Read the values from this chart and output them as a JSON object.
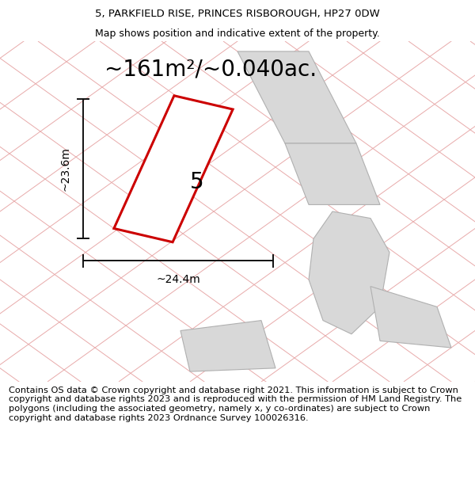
{
  "title_line1": "5, PARKFIELD RISE, PRINCES RISBOROUGH, HP27 0DW",
  "title_line2": "Map shows position and indicative extent of the property.",
  "area_label": "~161m²/~0.040ac.",
  "plot_number": "5",
  "dim_vertical": "~23.6m",
  "dim_horizontal": "~24.4m",
  "footer_text": "Contains OS data © Crown copyright and database right 2021. This information is subject to Crown copyright and database rights 2023 and is reproduced with the permission of HM Land Registry. The polygons (including the associated geometry, namely x, y co-ordinates) are subject to Crown copyright and database rights 2023 Ordnance Survey 100026316.",
  "bg_color": "#f7f2f2",
  "plot_fill": "#ffffff",
  "plot_edge": "#cc0000",
  "neighbor_fill": "#d8d8d8",
  "neighbor_edge": "#b0b0b0",
  "road_color": "#e8aaaa",
  "dim_line_color": "#111111",
  "title_fontsize": 9.5,
  "subtitle_fontsize": 9.0,
  "area_fontsize": 20,
  "number_fontsize": 20,
  "dim_fontsize": 10,
  "footer_fontsize": 8.2,
  "figsize": [
    6.0,
    6.25
  ],
  "dpi": 100
}
